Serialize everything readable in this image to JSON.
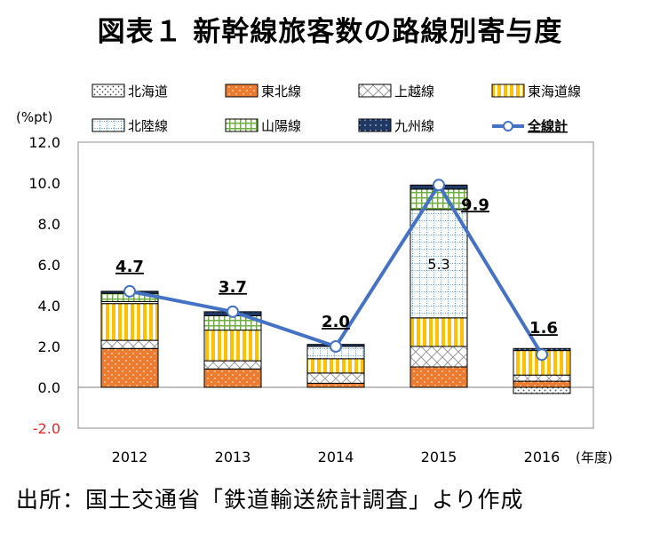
{
  "title": "図表１ 新幹線旅客数の路線別寄与度",
  "source": "出所：国土交通省「鉄道輸送統計調査」より作成",
  "chart_data": {
    "type": "bar",
    "stacked": true,
    "ylabel": "(%pt)",
    "xlabel": "(年度)",
    "ylim": [
      -2.0,
      12.0
    ],
    "yticks": [
      "12.0",
      "10.0",
      "8.0",
      "6.0",
      "4.0",
      "2.0",
      "0.0",
      "-2.0"
    ],
    "negative_tick_color": "#e8262c",
    "categories": [
      "2012",
      "2013",
      "2014",
      "2015",
      "2016"
    ],
    "legend_position": "top",
    "series": [
      {
        "name": "北海道",
        "pattern": "dots",
        "color": "#ffffff",
        "values": [
          0.0,
          0.0,
          0.0,
          0.0,
          -0.3
        ]
      },
      {
        "name": "東北線",
        "pattern": "orange-dots",
        "color": "#ec7c30",
        "values": [
          1.9,
          0.9,
          0.2,
          1.0,
          0.3
        ]
      },
      {
        "name": "上越線",
        "pattern": "crosshatch",
        "color": "#ffffff",
        "values": [
          0.4,
          0.4,
          0.5,
          1.0,
          0.3
        ]
      },
      {
        "name": "東海道線",
        "pattern": "yellow-stripes",
        "color": "#ffc000",
        "values": [
          1.8,
          1.5,
          0.7,
          1.4,
          1.2
        ]
      },
      {
        "name": "北陸線",
        "pattern": "blue-dotted-grid",
        "color": "#5b9bd5",
        "values": [
          0.1,
          0.0,
          0.6,
          5.3,
          0.0
        ]
      },
      {
        "name": "山陽線",
        "pattern": "green-grid",
        "color": "#70ad47",
        "values": [
          0.4,
          0.7,
          0.0,
          1.0,
          0.0
        ]
      },
      {
        "name": "九州線",
        "pattern": "navy-dots",
        "color": "#203864",
        "values": [
          0.1,
          0.2,
          0.1,
          0.2,
          0.1
        ]
      }
    ],
    "line_series": {
      "name": "全線計",
      "color": "#4472c4",
      "values": [
        4.7,
        3.7,
        2.0,
        9.9,
        1.6
      ]
    },
    "total_labels": [
      "4.7",
      "3.7",
      "2.0",
      "9.9",
      "1.6"
    ],
    "annotations": [
      {
        "text": "5.3",
        "category": "2015",
        "series": "北陸線"
      }
    ]
  }
}
